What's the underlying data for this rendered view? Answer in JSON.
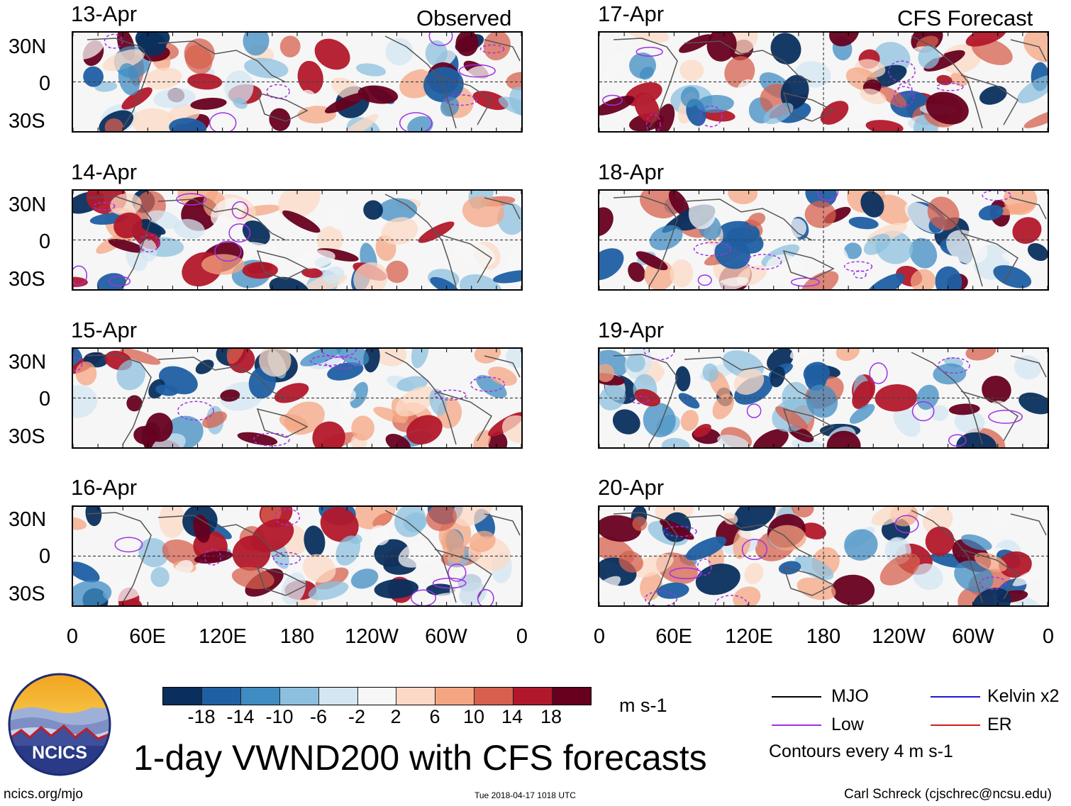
{
  "panels": [
    {
      "date": "13-Apr",
      "tag": "Observed",
      "seed": 1
    },
    {
      "date": "14-Apr",
      "tag": "",
      "seed": 2
    },
    {
      "date": "15-Apr",
      "tag": "",
      "seed": 3
    },
    {
      "date": "16-Apr",
      "tag": "",
      "seed": 4
    },
    {
      "date": "17-Apr",
      "tag": "CFS Forecast",
      "seed": 5
    },
    {
      "date": "18-Apr",
      "tag": "",
      "seed": 6
    },
    {
      "date": "19-Apr",
      "tag": "",
      "seed": 7
    },
    {
      "date": "20-Apr",
      "tag": "",
      "seed": 8
    }
  ],
  "lat_labels": [
    "30N",
    "0",
    "30S"
  ],
  "lon_labels": [
    "0",
    "60E",
    "120E",
    "180",
    "120W",
    "60W",
    "0"
  ],
  "colorbar": {
    "colors": [
      "#0a2f5e",
      "#1f5fa3",
      "#3f8cc3",
      "#8cc0de",
      "#d3e6f1",
      "#f7f7f7",
      "#fcd9c6",
      "#f4a582",
      "#d6604d",
      "#b2182b",
      "#67001f"
    ],
    "ticks": [
      "-18",
      "-14",
      "-10",
      "-6",
      "-2",
      "2",
      "6",
      "10",
      "14",
      "18"
    ],
    "units": "m s-1"
  },
  "legend": {
    "items": [
      {
        "label": "MJO",
        "color": "#000000"
      },
      {
        "label": "Kelvin x2",
        "color": "#1a1ad6"
      },
      {
        "label": "Low",
        "color": "#a030e6"
      },
      {
        "label": "ER",
        "color": "#d61a1a"
      }
    ],
    "note": "Contours every 4 m s-1"
  },
  "title": "1-day VWND200 with CFS forecasts",
  "logo_text": "NCICS",
  "footer": {
    "url": "ncics.org/mjo",
    "timestamp": "Tue 2018-04-17 1018 UTC",
    "credit": "Carl Schreck (cjschrec@ncsu.edu)"
  }
}
